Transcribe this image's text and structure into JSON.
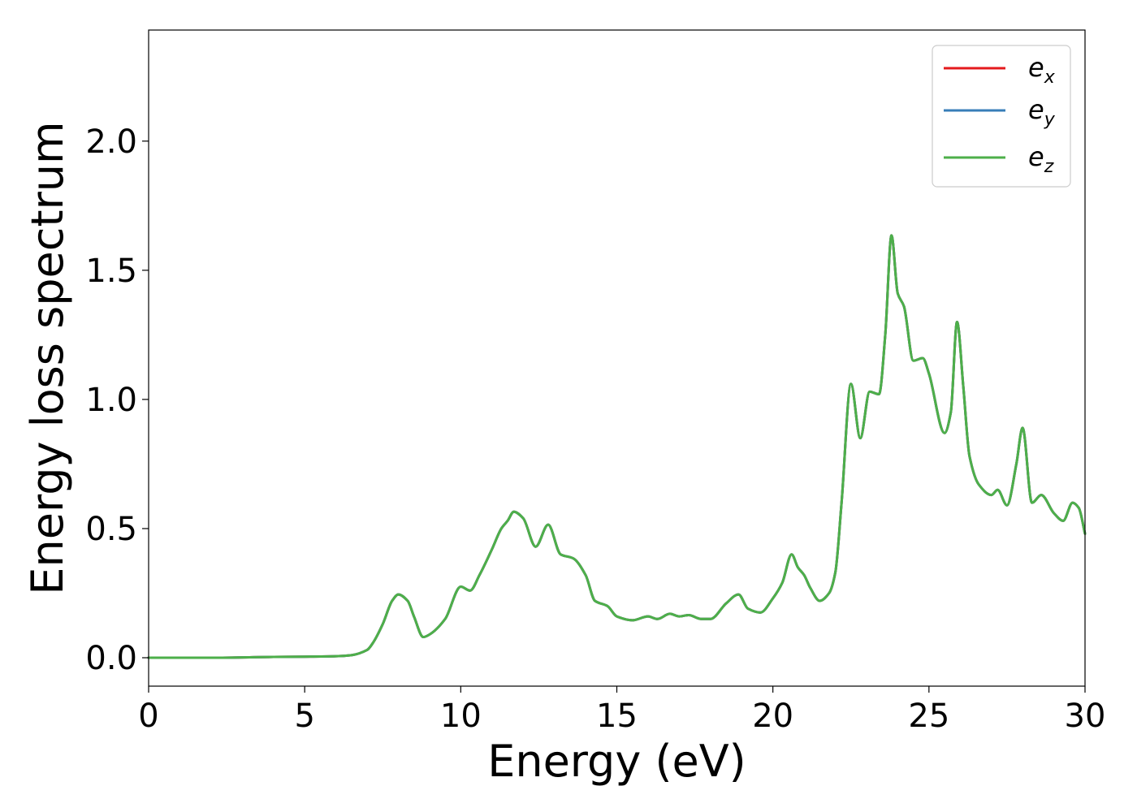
{
  "chart_data": {
    "type": "line",
    "xlabel": "Energy (eV)",
    "ylabel": "Energy loss spectrum",
    "xlim": [
      0,
      30
    ],
    "ylim": [
      -0.11,
      2.43
    ],
    "xticks": [
      0,
      5,
      10,
      15,
      20,
      25,
      30
    ],
    "xtick_labels": [
      "0",
      "5",
      "10",
      "15",
      "20",
      "25",
      "30"
    ],
    "yticks": [
      0.0,
      0.5,
      1.0,
      1.5,
      2.0
    ],
    "ytick_labels": [
      "0.0",
      "0.5",
      "1.0",
      "1.5",
      "2.0"
    ],
    "grid": false,
    "legend_position": "top-right",
    "x": [
      0,
      2,
      4,
      5,
      6,
      6.5,
      7.0,
      7.2,
      7.5,
      7.8,
      8.0,
      8.3,
      8.5,
      8.8,
      9.0,
      9.5,
      10.0,
      10.3,
      10.6,
      11.0,
      11.3,
      11.5,
      11.7,
      12.0,
      12.4,
      12.8,
      13.2,
      13.6,
      14.0,
      14.3,
      14.7,
      15.0,
      15.5,
      16.0,
      16.3,
      16.7,
      17.0,
      17.3,
      17.7,
      18.0,
      18.5,
      18.9,
      19.2,
      19.6,
      20.0,
      20.3,
      20.6,
      20.8,
      21.0,
      21.2,
      21.5,
      21.8,
      22.0,
      22.2,
      22.5,
      22.8,
      23.1,
      23.4,
      23.6,
      23.8,
      24.0,
      24.2,
      24.5,
      24.8,
      25.0,
      25.5,
      25.7,
      25.9,
      26.1,
      26.3,
      26.6,
      27.0,
      27.2,
      27.5,
      27.8,
      28.0,
      28.3,
      28.6,
      29.0,
      29.3,
      29.6,
      29.8,
      30.0
    ],
    "series": [
      {
        "name": "e_x",
        "color": "#e41a1c",
        "values": [
          0.0,
          0.0,
          0.003,
          0.004,
          0.006,
          0.01,
          0.03,
          0.06,
          0.13,
          0.22,
          0.245,
          0.22,
          0.16,
          0.08,
          0.09,
          0.15,
          0.275,
          0.26,
          0.32,
          0.42,
          0.5,
          0.53,
          0.565,
          0.54,
          0.43,
          0.515,
          0.4,
          0.385,
          0.32,
          0.22,
          0.2,
          0.16,
          0.145,
          0.16,
          0.15,
          0.17,
          0.16,
          0.165,
          0.15,
          0.15,
          0.21,
          0.245,
          0.19,
          0.175,
          0.23,
          0.29,
          0.4,
          0.35,
          0.32,
          0.27,
          0.22,
          0.25,
          0.33,
          0.6,
          1.06,
          0.85,
          1.03,
          1.02,
          1.25,
          1.635,
          1.41,
          1.36,
          1.15,
          1.16,
          1.1,
          0.87,
          0.95,
          1.3,
          1.05,
          0.78,
          0.67,
          0.63,
          0.65,
          0.59,
          0.75,
          0.89,
          0.6,
          0.63,
          0.56,
          0.53,
          0.6,
          0.58,
          0.48
        ]
      },
      {
        "name": "e_y",
        "color": "#377eb8",
        "values": [
          0.0,
          0.0,
          0.003,
          0.004,
          0.006,
          0.01,
          0.03,
          0.06,
          0.13,
          0.22,
          0.245,
          0.22,
          0.16,
          0.08,
          0.09,
          0.15,
          0.275,
          0.26,
          0.32,
          0.42,
          0.5,
          0.53,
          0.565,
          0.54,
          0.43,
          0.515,
          0.4,
          0.385,
          0.32,
          0.22,
          0.2,
          0.16,
          0.145,
          0.16,
          0.15,
          0.17,
          0.16,
          0.165,
          0.15,
          0.15,
          0.21,
          0.245,
          0.19,
          0.175,
          0.23,
          0.29,
          0.4,
          0.35,
          0.32,
          0.27,
          0.22,
          0.25,
          0.33,
          0.6,
          1.06,
          0.85,
          1.03,
          1.02,
          1.25,
          1.635,
          1.41,
          1.36,
          1.15,
          1.16,
          1.1,
          0.87,
          0.95,
          1.3,
          1.05,
          0.78,
          0.67,
          0.63,
          0.65,
          0.59,
          0.75,
          0.89,
          0.6,
          0.63,
          0.56,
          0.53,
          0.6,
          0.58,
          0.48
        ]
      },
      {
        "name": "e_z",
        "color": "#4daf4a",
        "values": [
          0.0,
          0.0,
          0.003,
          0.004,
          0.006,
          0.01,
          0.03,
          0.06,
          0.13,
          0.22,
          0.245,
          0.22,
          0.16,
          0.08,
          0.09,
          0.15,
          0.275,
          0.26,
          0.32,
          0.42,
          0.5,
          0.53,
          0.565,
          0.54,
          0.43,
          0.515,
          0.4,
          0.385,
          0.32,
          0.22,
          0.2,
          0.16,
          0.145,
          0.16,
          0.15,
          0.17,
          0.16,
          0.165,
          0.15,
          0.15,
          0.21,
          0.245,
          0.19,
          0.175,
          0.23,
          0.29,
          0.4,
          0.35,
          0.32,
          0.27,
          0.22,
          0.25,
          0.33,
          0.6,
          1.06,
          0.85,
          1.03,
          1.02,
          1.25,
          1.635,
          1.41,
          1.36,
          1.15,
          1.16,
          1.1,
          0.87,
          0.95,
          1.3,
          1.05,
          0.78,
          0.67,
          0.63,
          0.65,
          0.59,
          0.75,
          0.89,
          0.6,
          0.63,
          0.56,
          0.53,
          0.6,
          0.58,
          0.48
        ]
      }
    ],
    "legend": [
      {
        "symbol": "e",
        "sub": "x",
        "color": "#e41a1c"
      },
      {
        "symbol": "e",
        "sub": "y",
        "color": "#377eb8"
      },
      {
        "symbol": "e",
        "sub": "z",
        "color": "#4daf4a"
      }
    ]
  }
}
